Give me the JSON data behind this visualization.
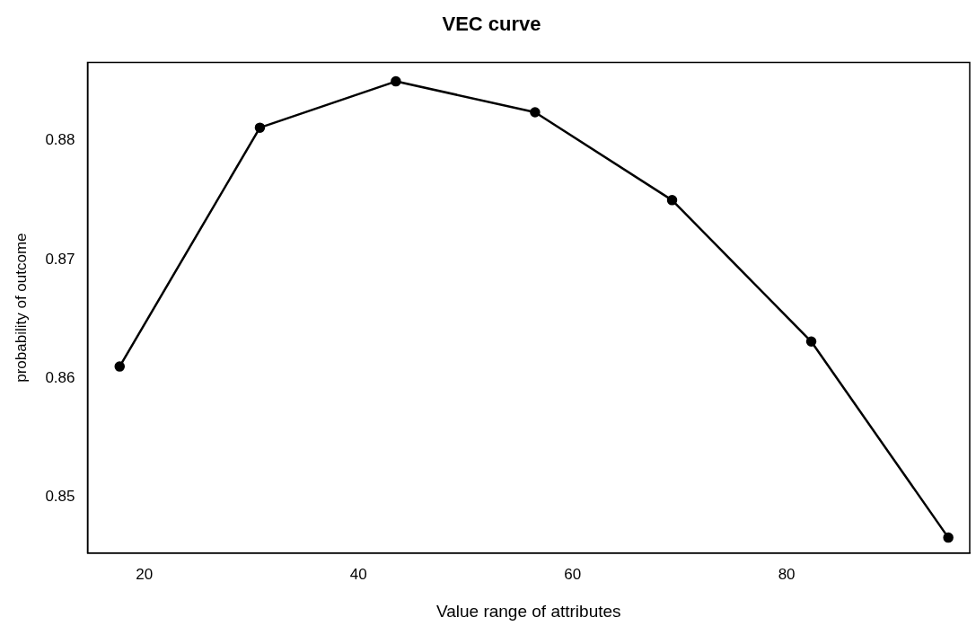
{
  "chart_data": {
    "type": "line",
    "title": "VEC curve",
    "xlabel": "Value range of attributes",
    "ylabel": "probability of outcome",
    "x": [
      17.7,
      30.8,
      43.5,
      56.5,
      69.3,
      82.3,
      95.1
    ],
    "series": [
      {
        "color": "#000000",
        "values": [
          0.861,
          0.8811,
          0.885,
          0.8824,
          0.875,
          0.8631,
          0.8466
        ]
      }
    ],
    "xlim": [
      14.7,
      97.1
    ],
    "xticks": [
      20,
      40,
      60,
      80
    ],
    "ylim": [
      0.8453,
      0.8866
    ],
    "yticks": [
      0.85,
      0.86,
      0.87,
      0.88
    ],
    "grid": false,
    "legend": false,
    "marker": "circle",
    "line_style": "solid"
  }
}
